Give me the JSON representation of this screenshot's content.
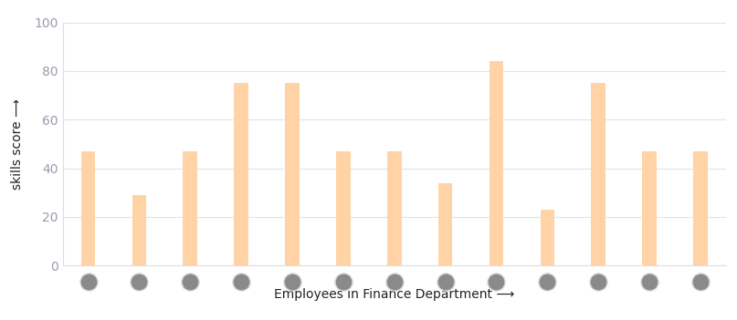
{
  "chart_data": {
    "type": "bar",
    "categories": [
      null,
      null,
      null,
      null,
      null,
      null,
      null,
      null,
      null,
      null,
      null,
      null,
      null
    ],
    "values": [
      47,
      29,
      47,
      75,
      75,
      47,
      47,
      34,
      84,
      23,
      75,
      47,
      47
    ],
    "color": "#ffd3a5",
    "xlabel": "Employees in Finance Department ⟶",
    "ylabel": "skills score ⟶",
    "ylim": [
      0,
      100
    ],
    "yticks": [
      0,
      20,
      40,
      60,
      80,
      100
    ],
    "grid": true,
    "tick_labels": "y"
  }
}
